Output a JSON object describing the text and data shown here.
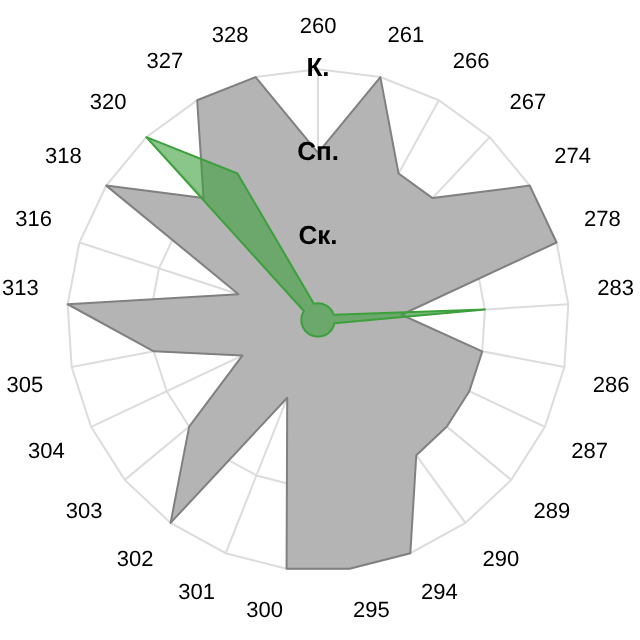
{
  "chart_data": {
    "type": "radar",
    "categories": [
      "260",
      "261",
      "266",
      "267",
      "274",
      "278",
      "283",
      "286",
      "287",
      "289",
      "290",
      "294",
      "295",
      "300",
      "301",
      "302",
      "303",
      "304",
      "305",
      "313",
      "316",
      "318",
      "320",
      "327",
      "328"
    ],
    "series": [
      {
        "color": "#808080",
        "values": [
          2,
          3,
          2,
          2,
          3,
          3,
          1,
          2,
          2,
          2,
          2,
          3,
          3,
          3,
          1,
          3,
          2,
          1,
          2,
          3,
          1,
          3,
          2,
          3,
          3
        ]
      },
      {
        "color": "#3ca03c",
        "values": [
          0.2,
          0.2,
          0.2,
          0.2,
          0.2,
          0.2,
          2,
          0.2,
          0.2,
          0.2,
          0.2,
          0.2,
          0.2,
          0.2,
          0.2,
          0.2,
          0.2,
          0.2,
          0.2,
          0.2,
          0.2,
          0.2,
          3,
          2,
          0.2
        ]
      }
    ],
    "ylim": [
      0,
      3
    ],
    "yticks": [
      {
        "value": 1,
        "label": "Ск."
      },
      {
        "value": 2,
        "label": "Сп."
      },
      {
        "value": 3,
        "label": "К."
      }
    ],
    "grid": true,
    "legend": false,
    "marker": "none"
  }
}
